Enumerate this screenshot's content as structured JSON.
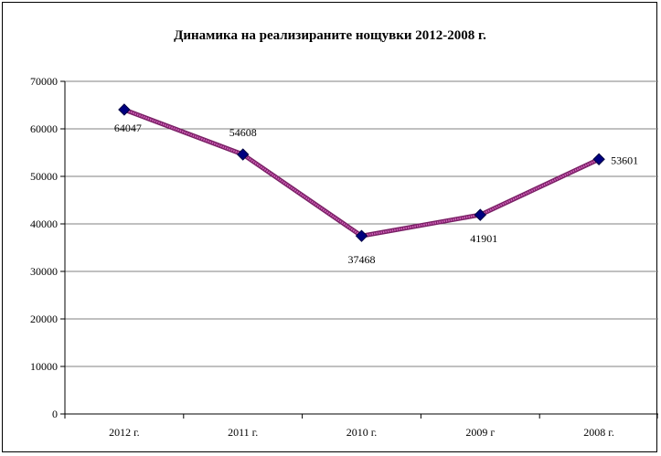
{
  "chart_data": {
    "type": "line",
    "title": "Динамика на реализираните нощувки 2012-2008 г.",
    "categories": [
      "2012 г.",
      "2011 г.",
      "2010 г.",
      "2009 г",
      "2008 г."
    ],
    "series": [
      {
        "values": [
          64047,
          54608,
          37468,
          41901,
          53601
        ],
        "color": "#a0307f",
        "marker_color": "#000080"
      }
    ],
    "data_labels": [
      "64047",
      "54608",
      "37468",
      "41901",
      "53601"
    ],
    "ylim": [
      0,
      70000
    ],
    "yticks": [
      0,
      10000,
      20000,
      30000,
      40000,
      50000,
      60000,
      70000
    ],
    "grid": true,
    "legend": "none"
  }
}
